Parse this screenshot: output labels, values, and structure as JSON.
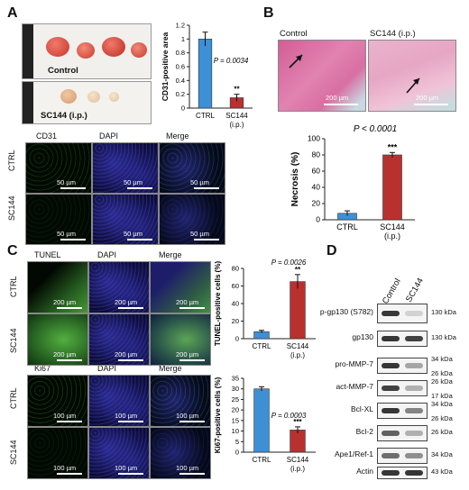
{
  "panels": {
    "A": {
      "letter": "A",
      "photo_control_label": "Control",
      "photo_sc144_label": "SC144 (i.p.)",
      "channels": [
        "CD31",
        "DAPI",
        "Merge"
      ],
      "rows": [
        "CTRL",
        "SC144"
      ],
      "scale_label": "50 µm"
    },
    "B": {
      "letter": "B",
      "control_label": "Control",
      "sc144_label": "SC144 (i.p.)",
      "scale_label": "200 µm"
    },
    "C": {
      "letter": "C",
      "top_channels": [
        "TUNEL",
        "DAPI",
        "Merge"
      ],
      "bottom_channels": [
        "Ki67",
        "DAPI",
        "Merge"
      ],
      "rows": [
        "CTRL",
        "SC144"
      ],
      "top_scale": "200 µm",
      "bottom_scale": "100 µm"
    },
    "D": {
      "letter": "D",
      "lanes": [
        "Control",
        "SC144"
      ],
      "bands": [
        {
          "name": "p-gp130 (S782)",
          "kda": [
            "130 kDa"
          ]
        },
        {
          "name": "gp130",
          "kda": [
            "130 kDa"
          ]
        },
        {
          "name": "pro-MMP-7",
          "kda": [
            "34 kDa",
            "26 kDa"
          ]
        },
        {
          "name": "act-MMP-7",
          "kda": [
            "26 kDa",
            "17 kDa"
          ]
        },
        {
          "name": "Bcl-XL",
          "kda": [
            "34 kDa",
            "26 kDa"
          ]
        },
        {
          "name": "Bcl-2",
          "kda": [
            "26 kDa"
          ]
        },
        {
          "name": "Ape1/Ref-1",
          "kda": [
            "34 kDa"
          ]
        },
        {
          "name": "Actin",
          "kda": [
            "43 kDa"
          ]
        }
      ]
    }
  },
  "chart_data": [
    {
      "type": "bar",
      "categories": [
        "CTRL",
        "SC144 (i.p.)"
      ],
      "values": [
        1.0,
        0.15
      ],
      "errors": [
        0.1,
        0.05
      ],
      "ylabel": "CD31-positive area",
      "ylim": [
        0,
        1.2
      ],
      "yticks": [
        "0",
        "0.2",
        "0.4",
        "0.6",
        "0.8",
        "1",
        "1.2"
      ],
      "annotation": "P = 0.0034",
      "significance": "**",
      "colors": [
        "#3d8fd6",
        "#b8312f"
      ]
    },
    {
      "type": "bar",
      "categories": [
        "CTRL",
        "SC144 (i.p.)"
      ],
      "values": [
        8,
        80
      ],
      "errors": [
        3,
        3
      ],
      "ylabel": "Necrosis (%)",
      "ylim": [
        0,
        100
      ],
      "yticks": [
        "0",
        "20",
        "40",
        "60",
        "80",
        "100"
      ],
      "annotation": "P < 0.0001",
      "significance": "***",
      "colors": [
        "#3d8fd6",
        "#b8312f"
      ]
    },
    {
      "type": "bar",
      "categories": [
        "CTRL",
        "SC144 (i.p.)"
      ],
      "values": [
        8,
        65
      ],
      "errors": [
        1.5,
        8
      ],
      "ylabel": "TUNEL-positive cells (%)",
      "ylim": [
        0,
        80
      ],
      "yticks": [
        "0",
        "20",
        "40",
        "60",
        "80"
      ],
      "annotation": "P = 0.0026",
      "significance": "**",
      "colors": [
        "#3d8fd6",
        "#b8312f"
      ]
    },
    {
      "type": "bar",
      "categories": [
        "CTRL",
        "SC144 (i.p.)"
      ],
      "values": [
        30,
        10.5
      ],
      "errors": [
        1,
        1.5
      ],
      "ylabel": "Ki67-positive cells (%)",
      "ylim": [
        0,
        35
      ],
      "yticks": [
        "0",
        "5",
        "10",
        "15",
        "20",
        "25",
        "30",
        "35"
      ],
      "annotation": "P = 0.0003",
      "significance": "***",
      "colors": [
        "#3d8fd6",
        "#b8312f"
      ]
    }
  ]
}
